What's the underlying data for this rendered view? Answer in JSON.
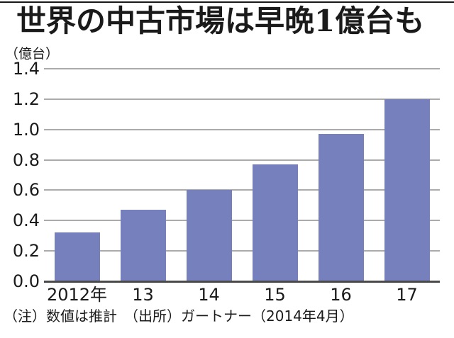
{
  "chart_data": {
    "type": "bar",
    "title": "世界の中古市場は早晩1億台も",
    "unit_label": "（億台）",
    "categories": [
      "2012年",
      "13",
      "14",
      "15",
      "16",
      "17"
    ],
    "values": [
      0.32,
      0.47,
      0.6,
      0.77,
      0.97,
      1.2
    ],
    "ylim": [
      0,
      1.4
    ],
    "ytick_interval": 0.2,
    "yticks": [
      "1.4",
      "1.2",
      "1.0",
      "0.8",
      "0.6",
      "0.4",
      "0.2",
      "0.0"
    ],
    "grid": true,
    "legend": "none",
    "bar_color": "#7580bd",
    "grid_color": "#ababab",
    "axis_color": "#4a4a4a"
  },
  "footer": {
    "note": "（注）数値は推計　（出所）ガートナー（2014年4月）"
  }
}
